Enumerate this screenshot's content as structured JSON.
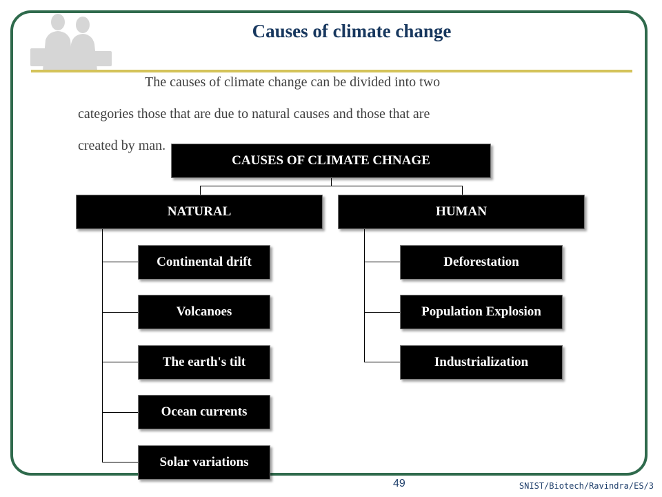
{
  "slide": {
    "title": "Causes of climate change",
    "body_line1": "The causes of climate change can be divided into two",
    "body_line2": "categories  those that are due to natural causes and those that are",
    "body_line3": "created by man."
  },
  "diagram": {
    "root": "CAUSES OF CLIMATE CHNAGE",
    "natural": {
      "label": "NATURAL",
      "items": [
        "Continental drift",
        "Volcanoes",
        "The earth's tilt",
        "Ocean currents",
        "Solar variations"
      ]
    },
    "human": {
      "label": "HUMAN",
      "items": [
        "Deforestation",
        "Population Explosion",
        "Industrialization"
      ]
    }
  },
  "footer": {
    "page_number": "49",
    "credit": "SNIST/Biotech/Ravindra/ES/3"
  },
  "colors": {
    "frame": "#2f6a4c",
    "rule": "#d4c35a",
    "title": "#17375e",
    "box_fill": "#000000",
    "box_text": "#ffffff"
  },
  "icons": [
    "people-silhouette-icon"
  ]
}
